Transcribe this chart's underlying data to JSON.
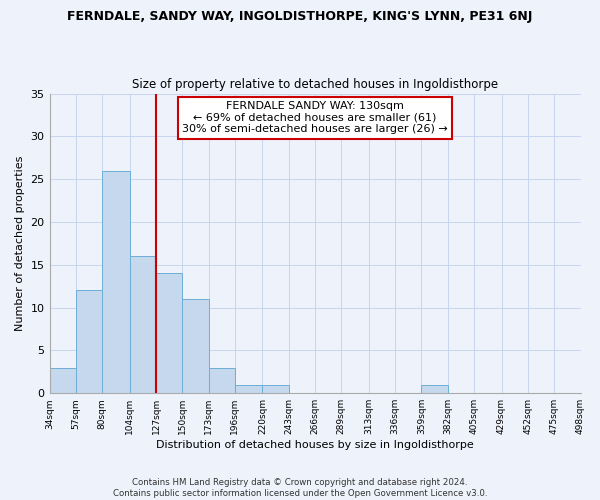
{
  "title": "FERNDALE, SANDY WAY, INGOLDISTHORPE, KING'S LYNN, PE31 6NJ",
  "subtitle": "Size of property relative to detached houses in Ingoldisthorpe",
  "xlabel": "Distribution of detached houses by size in Ingoldisthorpe",
  "ylabel": "Number of detached properties",
  "bin_edges": [
    34,
    57,
    80,
    104,
    127,
    150,
    173,
    196,
    220,
    243,
    266,
    289,
    313,
    336,
    359,
    382,
    405,
    429,
    452,
    475,
    498
  ],
  "counts": [
    3,
    12,
    26,
    16,
    14,
    11,
    3,
    1,
    1,
    0,
    0,
    0,
    0,
    0,
    1,
    0,
    0,
    0,
    0,
    0
  ],
  "bar_color": "#c5d8ee",
  "bar_edge_color": "#6baed6",
  "vline_x": 127,
  "vline_color": "#cc0000",
  "annotation_line1": "FERNDALE SANDY WAY: 130sqm",
  "annotation_line2": "← 69% of detached houses are smaller (61)",
  "annotation_line3": "30% of semi-detached houses are larger (26) →",
  "annotation_box_color": "#ffffff",
  "annotation_box_edge_color": "#cc0000",
  "ylim": [
    0,
    35
  ],
  "yticks": [
    0,
    5,
    10,
    15,
    20,
    25,
    30,
    35
  ],
  "footer_text": "Contains HM Land Registry data © Crown copyright and database right 2024.\nContains public sector information licensed under the Open Government Licence v3.0.",
  "bg_color": "#eef2fb",
  "grid_color": "#c8d4ee"
}
